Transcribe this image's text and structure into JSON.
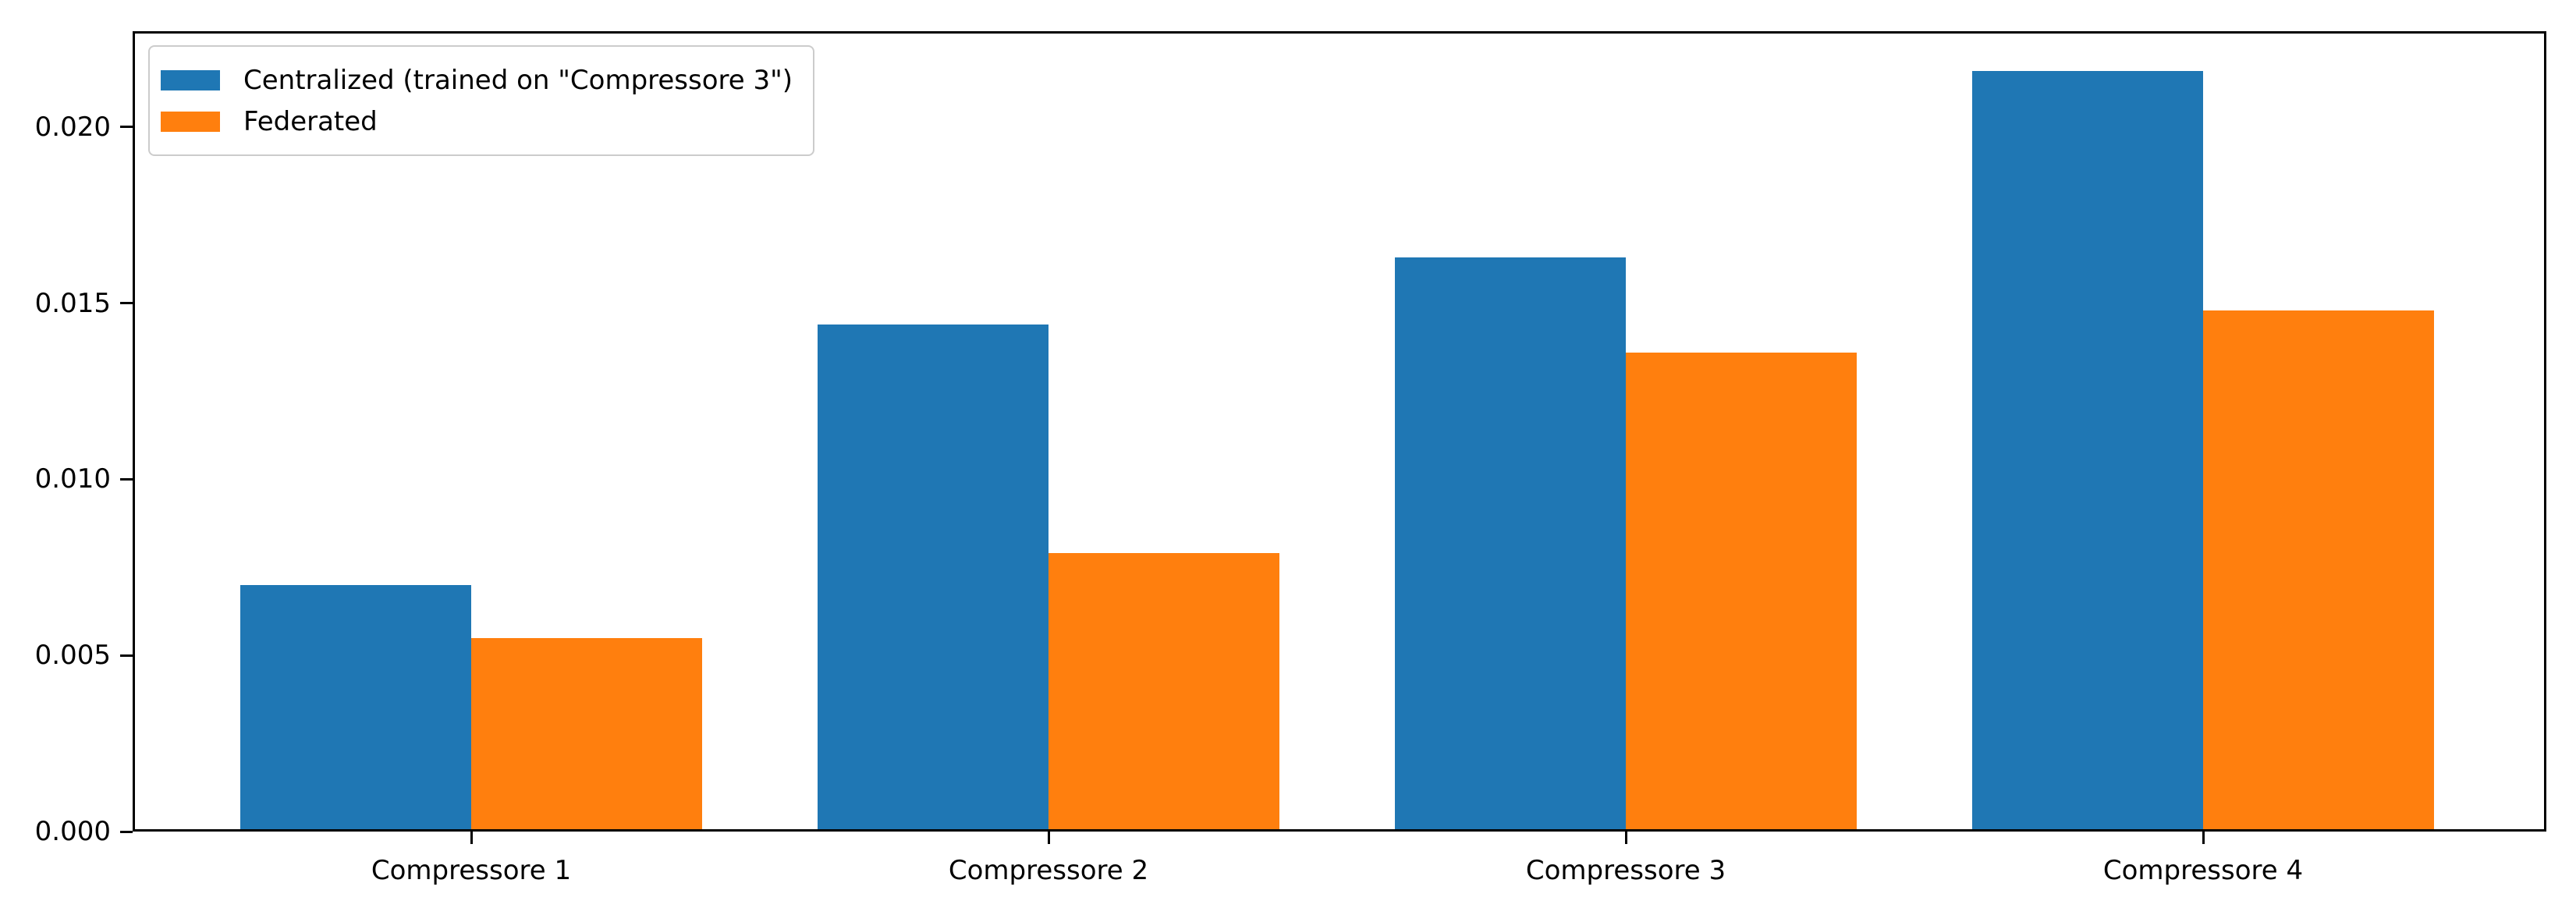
{
  "chart_data": {
    "type": "bar",
    "title": "",
    "xlabel": "",
    "ylabel": "",
    "categories": [
      "Compressore 1",
      "Compressore 2",
      "Compressore 3",
      "Compressore 4"
    ],
    "series": [
      {
        "name": "Centralized (trained on \"Compressore 3\")",
        "color": "#1f77b4",
        "values": [
          0.007,
          0.0144,
          0.0163,
          0.0216
        ]
      },
      {
        "name": "Federated",
        "color": "#ff7f0e",
        "values": [
          0.0055,
          0.0079,
          0.0136,
          0.0148
        ]
      }
    ],
    "yticks": [
      0.0,
      0.005,
      0.01,
      0.015,
      0.02
    ],
    "ytick_labels": [
      "0.000",
      "0.005",
      "0.010",
      "0.015",
      "0.020"
    ],
    "ylim": [
      0,
      0.02272
    ],
    "grid": false,
    "legend_position": "upper left",
    "bar_group_width_data_units": 0.8,
    "background_color": "#ffffff",
    "spine_color": "#000000"
  }
}
